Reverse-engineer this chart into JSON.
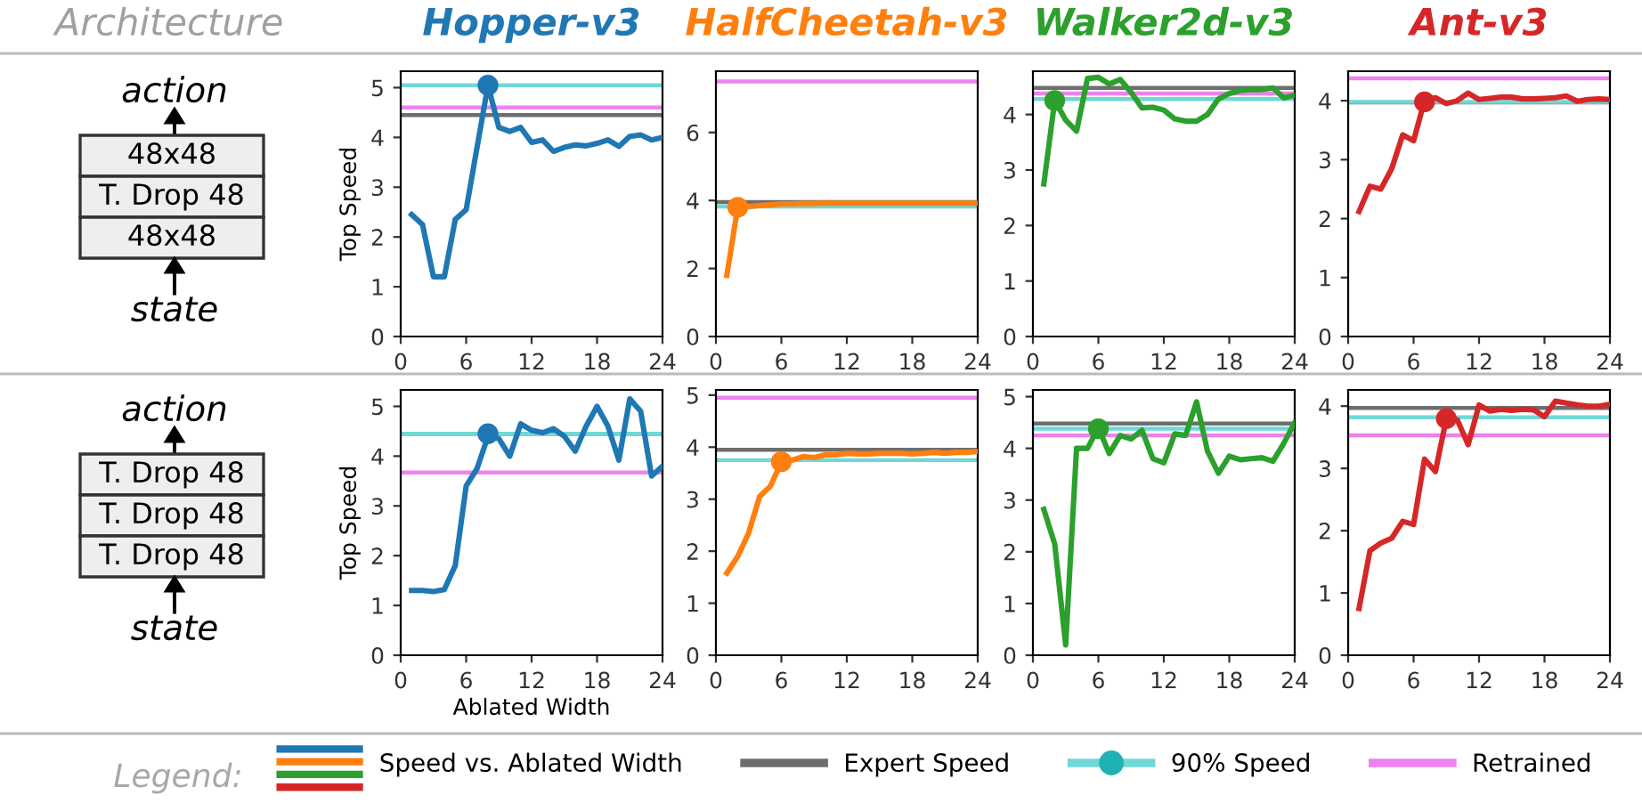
{
  "chart_data": [
    {
      "type": "other",
      "title": "Architecture",
      "annotations": [
        "action",
        "48x48",
        "T. Drop 48",
        "48x48",
        "state"
      ]
    },
    {
      "type": "line",
      "title": "Hopper-v3",
      "ylabel": "Top Speed",
      "legend": "bottom",
      "legend_title": "Legend:",
      "xlim": [
        0,
        24
      ],
      "xticks": [
        0,
        6,
        12,
        18,
        24
      ],
      "ylim": [
        0,
        5.33
      ],
      "yticks": [
        0,
        1,
        2,
        3,
        4,
        5
      ],
      "x": [
        1,
        2,
        3,
        4,
        5,
        6,
        7,
        8,
        9,
        10,
        11,
        12,
        13,
        14,
        15,
        16,
        17,
        18,
        19,
        20,
        21,
        22,
        23,
        24
      ],
      "series": [
        {
          "name": "Speed vs. Ablated Width",
          "color": "#1f77b4",
          "values": [
            2.45,
            2.25,
            1.2,
            1.2,
            2.35,
            2.55,
            3.8,
            5.05,
            4.2,
            4.12,
            4.2,
            3.9,
            3.95,
            3.72,
            3.8,
            3.85,
            3.83,
            3.88,
            3.95,
            3.82,
            4.02,
            4.05,
            3.95,
            4.0
          ]
        },
        {
          "type": "scatter",
          "color": "#1f77b4",
          "x": [
            8
          ],
          "values": [
            5.05
          ]
        }
      ],
      "ref_lines": [
        {
          "axis": "y",
          "value": 4.45,
          "label": "Expert Speed",
          "color": "#6e6e6e"
        },
        {
          "axis": "y",
          "value": 5.05,
          "label": "90% Speed",
          "color": "#6fd8d8"
        },
        {
          "axis": "y",
          "value": 4.6,
          "label": "Retrained",
          "color": "#ee82ee"
        }
      ]
    },
    {
      "type": "line",
      "title": "HalfCheetah-v3",
      "xlim": [
        0,
        24
      ],
      "xticks": [
        0,
        6,
        12,
        18,
        24
      ],
      "ylim": [
        0,
        7.8
      ],
      "yticks": [
        0,
        2,
        4,
        6
      ],
      "x": [
        1,
        2,
        3,
        4,
        5,
        6,
        7,
        8,
        9,
        10,
        11,
        12,
        13,
        14,
        15,
        16,
        17,
        18,
        19,
        20,
        21,
        22,
        23,
        24
      ],
      "series": [
        {
          "color": "#ff7f0e",
          "values": [
            1.8,
            3.8,
            3.82,
            3.85,
            3.87,
            3.9,
            3.9,
            3.91,
            3.91,
            3.92,
            3.92,
            3.92,
            3.92,
            3.92,
            3.92,
            3.92,
            3.92,
            3.92,
            3.92,
            3.92,
            3.92,
            3.92,
            3.92,
            3.92
          ]
        },
        {
          "type": "scatter",
          "color": "#ff7f0e",
          "x": [
            2
          ],
          "values": [
            3.8
          ]
        }
      ],
      "ref_lines": [
        {
          "axis": "y",
          "value": 3.95,
          "color": "#6e6e6e"
        },
        {
          "axis": "y",
          "value": 3.82,
          "color": "#6fd8d8"
        },
        {
          "axis": "y",
          "value": 7.5,
          "color": "#ee82ee"
        }
      ]
    },
    {
      "type": "line",
      "title": "Walker2d-v3",
      "xlim": [
        0,
        24
      ],
      "xticks": [
        0,
        6,
        12,
        18,
        24
      ],
      "ylim": [
        0,
        4.78
      ],
      "yticks": [
        0,
        1,
        2,
        3,
        4
      ],
      "x": [
        1,
        2,
        3,
        4,
        5,
        6,
        7,
        8,
        9,
        10,
        11,
        12,
        13,
        14,
        15,
        16,
        17,
        18,
        19,
        20,
        21,
        22,
        23,
        24
      ],
      "series": [
        {
          "color": "#2ca02c",
          "values": [
            2.75,
            4.25,
            3.9,
            3.7,
            4.65,
            4.67,
            4.55,
            4.63,
            4.4,
            4.12,
            4.13,
            4.08,
            3.92,
            3.88,
            3.88,
            4.0,
            4.28,
            4.38,
            4.43,
            4.45,
            4.45,
            4.48,
            4.3,
            4.35
          ]
        },
        {
          "type": "scatter",
          "color": "#2ca02c",
          "x": [
            2
          ],
          "values": [
            4.25
          ]
        }
      ],
      "ref_lines": [
        {
          "axis": "y",
          "value": 4.48,
          "color": "#6e6e6e"
        },
        {
          "axis": "y",
          "value": 4.28,
          "color": "#6fd8d8"
        },
        {
          "axis": "y",
          "value": 4.38,
          "color": "#ee82ee"
        }
      ]
    },
    {
      "type": "line",
      "title": "Ant-v3",
      "xlim": [
        0,
        24
      ],
      "xticks": [
        0,
        6,
        12,
        18,
        24
      ],
      "ylim": [
        0,
        4.5
      ],
      "yticks": [
        0,
        1,
        2,
        3,
        4
      ],
      "x": [
        1,
        2,
        3,
        4,
        5,
        6,
        7,
        8,
        9,
        10,
        11,
        12,
        13,
        14,
        15,
        16,
        17,
        18,
        19,
        20,
        21,
        22,
        23,
        24
      ],
      "series": [
        {
          "color": "#d62728",
          "values": [
            2.12,
            2.55,
            2.5,
            2.85,
            3.42,
            3.32,
            4.0,
            4.05,
            3.95,
            4.0,
            4.13,
            4.02,
            4.04,
            4.06,
            4.06,
            4.03,
            4.03,
            4.04,
            4.05,
            4.08,
            3.99,
            4.02,
            4.03,
            4.02
          ]
        },
        {
          "type": "scatter",
          "color": "#d62728",
          "x": [
            7
          ],
          "values": [
            3.98
          ]
        }
      ],
      "ref_lines": [
        {
          "axis": "y",
          "value": 3.97,
          "color": "#6e6e6e"
        },
        {
          "axis": "y",
          "value": 3.98,
          "color": "#6fd8d8"
        },
        {
          "axis": "y",
          "value": 4.38,
          "color": "#ee82ee"
        }
      ]
    },
    {
      "type": "other",
      "annotations": [
        "action",
        "T. Drop 48",
        "T. Drop 48",
        "T. Drop 48",
        "state"
      ]
    },
    {
      "type": "line",
      "ylabel": "Top Speed",
      "xlabel": "Ablated Width",
      "xlim": [
        0,
        24
      ],
      "xticks": [
        0,
        6,
        12,
        18,
        24
      ],
      "ylim": [
        0,
        5.33
      ],
      "yticks": [
        0,
        1,
        2,
        3,
        4,
        5
      ],
      "x": [
        1,
        2,
        3,
        4,
        5,
        6,
        7,
        8,
        9,
        10,
        11,
        12,
        13,
        14,
        15,
        16,
        17,
        18,
        19,
        20,
        21,
        22,
        23,
        24
      ],
      "series": [
        {
          "color": "#1f77b4",
          "values": [
            1.3,
            1.3,
            1.28,
            1.32,
            1.8,
            3.4,
            3.75,
            4.4,
            4.35,
            4.0,
            4.65,
            4.52,
            4.47,
            4.55,
            4.4,
            4.1,
            4.6,
            5.0,
            4.6,
            3.92,
            5.15,
            4.9,
            3.6,
            3.8
          ]
        },
        {
          "type": "scatter",
          "color": "#1f77b4",
          "x": [
            8
          ],
          "values": [
            4.45
          ]
        }
      ],
      "ref_lines": [
        {
          "axis": "y",
          "value": 4.45,
          "color": "#6e6e6e"
        },
        {
          "axis": "y",
          "value": 4.45,
          "color": "#6fd8d8"
        },
        {
          "axis": "y",
          "value": 3.67,
          "color": "#ee82ee"
        }
      ]
    },
    {
      "type": "line",
      "xlim": [
        0,
        24
      ],
      "xticks": [
        0,
        6,
        12,
        18,
        24
      ],
      "ylim": [
        0,
        5.1
      ],
      "yticks": [
        0,
        1,
        2,
        3,
        4,
        5
      ],
      "x": [
        1,
        2,
        3,
        4,
        5,
        6,
        7,
        8,
        9,
        10,
        11,
        12,
        13,
        14,
        15,
        16,
        17,
        18,
        19,
        20,
        21,
        22,
        23,
        24
      ],
      "series": [
        {
          "color": "#ff7f0e",
          "values": [
            1.58,
            1.9,
            2.35,
            3.05,
            3.25,
            3.72,
            3.75,
            3.82,
            3.8,
            3.85,
            3.85,
            3.88,
            3.87,
            3.87,
            3.88,
            3.88,
            3.88,
            3.87,
            3.88,
            3.9,
            3.88,
            3.9,
            3.9,
            3.92
          ]
        },
        {
          "type": "scatter",
          "color": "#ff7f0e",
          "x": [
            6
          ],
          "values": [
            3.72
          ]
        }
      ],
      "ref_lines": [
        {
          "axis": "y",
          "value": 3.95,
          "color": "#6e6e6e"
        },
        {
          "axis": "y",
          "value": 3.75,
          "color": "#6fd8d8"
        },
        {
          "axis": "y",
          "value": 4.95,
          "color": "#ee82ee"
        }
      ]
    },
    {
      "type": "line",
      "xlim": [
        0,
        24
      ],
      "xticks": [
        0,
        6,
        12,
        18,
        24
      ],
      "ylim": [
        0,
        5.13
      ],
      "yticks": [
        0,
        1,
        2,
        3,
        4,
        5
      ],
      "x": [
        1,
        2,
        3,
        4,
        5,
        6,
        7,
        8,
        9,
        10,
        11,
        12,
        13,
        14,
        15,
        16,
        17,
        18,
        19,
        20,
        21,
        22,
        23,
        24
      ],
      "series": [
        {
          "color": "#2ca02c",
          "values": [
            2.82,
            2.15,
            0.2,
            4.0,
            4.0,
            4.4,
            3.9,
            4.25,
            4.18,
            4.35,
            3.8,
            3.72,
            4.28,
            4.25,
            4.9,
            3.95,
            3.52,
            3.85,
            3.78,
            3.8,
            3.82,
            3.75,
            4.1,
            4.5
          ]
        },
        {
          "type": "scatter",
          "color": "#2ca02c",
          "x": [
            6
          ],
          "values": [
            4.38
          ]
        }
      ],
      "ref_lines": [
        {
          "axis": "y",
          "value": 4.48,
          "color": "#6e6e6e"
        },
        {
          "axis": "y",
          "value": 4.38,
          "color": "#6fd8d8"
        },
        {
          "axis": "y",
          "value": 4.25,
          "color": "#ee82ee"
        }
      ]
    },
    {
      "type": "line",
      "xlim": [
        0,
        24
      ],
      "xticks": [
        0,
        6,
        12,
        18,
        24
      ],
      "ylim": [
        0,
        4.26
      ],
      "yticks": [
        0,
        1,
        2,
        3,
        4
      ],
      "x": [
        1,
        2,
        3,
        4,
        5,
        6,
        7,
        8,
        9,
        10,
        11,
        12,
        13,
        14,
        15,
        16,
        17,
        18,
        19,
        20,
        21,
        22,
        23,
        24
      ],
      "series": [
        {
          "color": "#d62728",
          "values": [
            0.75,
            1.68,
            1.8,
            1.88,
            2.15,
            2.1,
            3.15,
            2.95,
            3.8,
            3.78,
            3.38,
            4.02,
            3.92,
            3.95,
            3.93,
            3.95,
            3.94,
            3.83,
            4.08,
            4.05,
            4.02,
            4.0,
            4.0,
            4.03
          ]
        },
        {
          "type": "scatter",
          "color": "#d62728",
          "x": [
            9
          ],
          "values": [
            3.8
          ]
        }
      ],
      "ref_lines": [
        {
          "axis": "y",
          "value": 3.97,
          "color": "#6e6e6e"
        },
        {
          "axis": "y",
          "value": 3.82,
          "color": "#6fd8d8"
        },
        {
          "axis": "y",
          "value": 3.53,
          "color": "#ee82ee"
        }
      ]
    }
  ]
}
